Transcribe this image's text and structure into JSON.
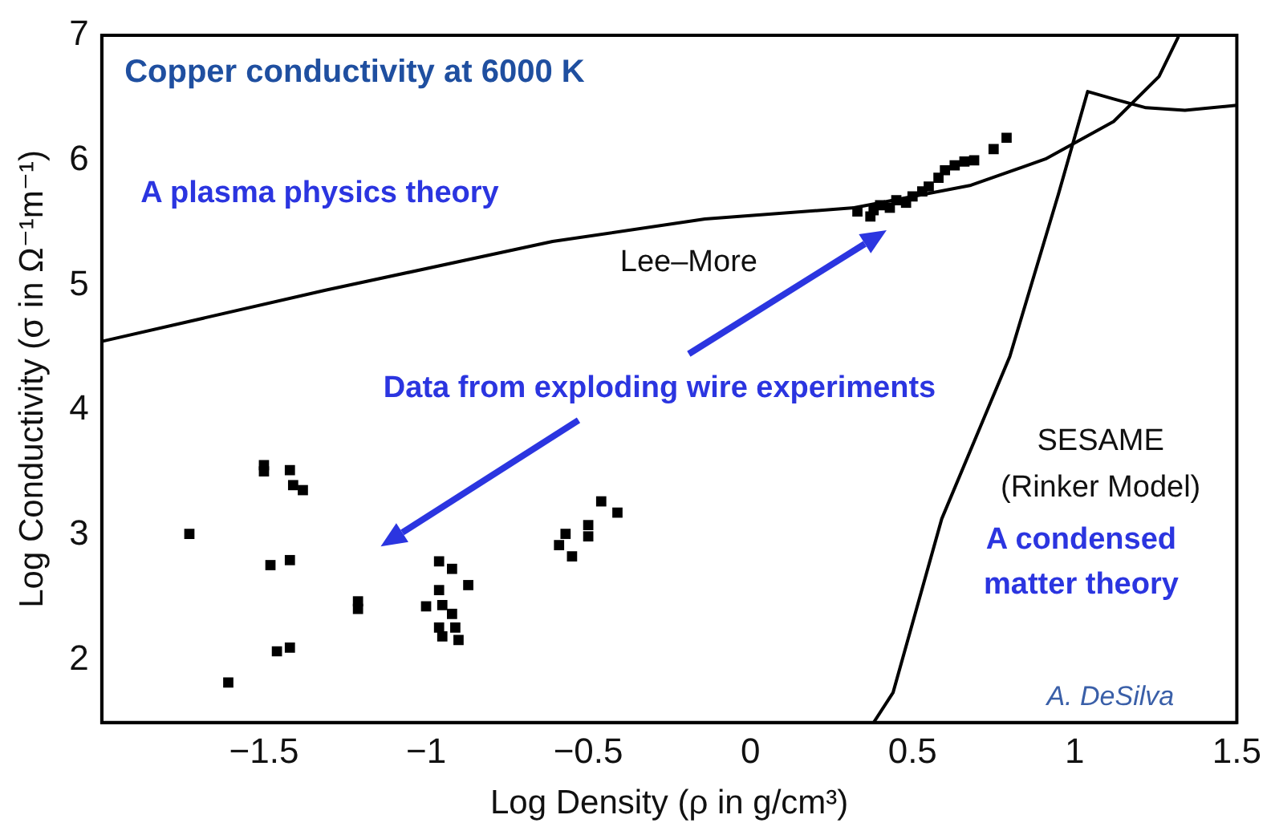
{
  "chart_data": {
    "type": "scatter",
    "title": "Copper conductivity at 6000 K",
    "xlabel": "Log Density (ρ in g/cm³)",
    "ylabel": "Log Conductivity (σ in Ω⁻¹m⁻¹)",
    "xlim": [
      -2,
      1.5
    ],
    "xticks": [
      -1.5,
      -1,
      -0.5,
      0,
      0.5,
      1,
      1.5
    ],
    "ylim": [
      1.5,
      7
    ],
    "yticks": [
      2,
      3,
      4,
      5,
      6,
      7
    ],
    "grid": false,
    "legend": false,
    "marker": "square",
    "annotations": [
      "A plasma physics theory",
      "Data from exploding wire experiments",
      "A condensed\nmatter theory",
      "A. DeSilva"
    ],
    "series": [
      {
        "type": "line",
        "name": "Lee–More",
        "color": "#000000",
        "marker": "none",
        "x": [
          -2,
          -1.31,
          -0.61,
          -0.14,
          0.32,
          0.68,
          0.91,
          1.12,
          1.26,
          1.32
        ],
        "values": [
          4.55,
          4.96,
          5.35,
          5.53,
          5.62,
          5.8,
          6.01,
          6.31,
          6.67,
          6.99
        ]
      },
      {
        "type": "line",
        "name": "SESAME\n(Rinker Model)",
        "color": "#000000",
        "marker": "none",
        "x": [
          0.38,
          0.44,
          0.59,
          0.8,
          0.95,
          1.04,
          1.12,
          1.22,
          1.34,
          1.5
        ],
        "values": [
          1.5,
          1.74,
          3.13,
          4.43,
          5.73,
          6.55,
          6.49,
          6.42,
          6.4,
          6.44
        ]
      },
      {
        "color": "#000000",
        "x": [
          -1.73,
          -1.5,
          -1.5,
          -1.42,
          -1.41,
          -1.38,
          -1.48,
          -1.42,
          -1.46,
          -1.42,
          -1.61,
          -1.21,
          -1.21,
          -0.96,
          -0.92,
          -0.87,
          -0.96,
          -1,
          -0.95,
          -0.92,
          -0.96,
          -0.91,
          -0.95,
          -0.9,
          -0.59,
          -0.57,
          -0.55,
          -0.5,
          -0.5,
          -0.46,
          -0.41,
          0.33,
          0.37,
          0.38,
          0.4,
          0.43,
          0.45,
          0.48,
          0.5,
          0.53,
          0.55,
          0.58,
          0.6,
          0.63,
          0.66,
          0.69,
          0.75,
          0.79
        ],
        "values": [
          3.01,
          3.56,
          3.51,
          3.52,
          3.4,
          3.36,
          2.76,
          2.8,
          2.07,
          2.1,
          1.82,
          2.47,
          2.41,
          2.79,
          2.73,
          2.6,
          2.56,
          2.43,
          2.44,
          2.37,
          2.26,
          2.26,
          2.19,
          2.16,
          2.92,
          3.01,
          2.83,
          3.08,
          2.99,
          3.27,
          3.18,
          5.59,
          5.55,
          5.6,
          5.64,
          5.62,
          5.68,
          5.66,
          5.71,
          5.75,
          5.79,
          5.86,
          5.92,
          5.96,
          5.99,
          6,
          6.09,
          6.18
        ]
      }
    ]
  }
}
